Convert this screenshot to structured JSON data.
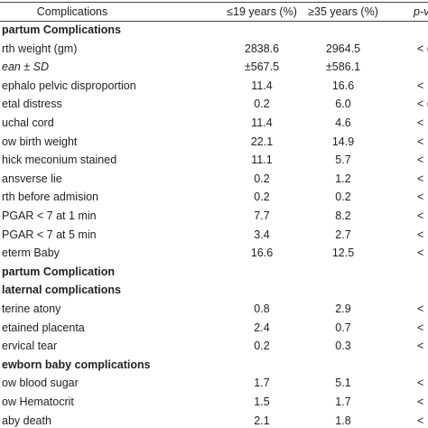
{
  "table": {
    "header": [
      "Complications",
      "≤19 years (%)",
      "≥35 years (%)",
      "p-v"
    ],
    "rows": [
      [
        "partum Complications"
      ],
      [
        "rth weight (gm)",
        "2838.6",
        "2964.5",
        "< ("
      ],
      [
        "ean ± SD",
        "±567.5",
        "±586.1"
      ],
      [
        "ephalo pelvic disproportion",
        "11.4",
        "16.6",
        "<"
      ],
      [
        "etal distress",
        "0.2",
        "6.0",
        "< ("
      ],
      [
        "uchal cord",
        "11.4",
        "4.6",
        "<"
      ],
      [
        "ow birth weight",
        "22.1",
        "14.9",
        "<"
      ],
      [
        "hick meconium stained",
        "11.1",
        "5.7",
        "<"
      ],
      [
        "ansverse lie",
        "0.2",
        "1.2",
        "<"
      ],
      [
        "rth before admision",
        "0.2",
        "0.2",
        "<"
      ],
      [
        "PGAR < 7 at 1 min",
        "7.7",
        "8.2",
        "<"
      ],
      [
        "PGAR < 7 at 5 min",
        "3.4",
        "2.7",
        "<"
      ],
      [
        "eterm Baby",
        "16.6",
        "12.5",
        "<"
      ],
      [
        "partum Complication"
      ],
      [
        "laternal complications"
      ],
      [
        "terine atony",
        "0.8",
        "2.9",
        "<"
      ],
      [
        "etained placenta",
        "2.4",
        "0.7",
        "<"
      ],
      [
        "ervical tear",
        "0.2",
        "0.3",
        "<"
      ],
      [
        "ewborn baby complications"
      ],
      [
        "ow blood sugar",
        "1.7",
        "5.1",
        "<"
      ],
      [
        "ow Hematocrit",
        "1.5",
        "1.7",
        "<"
      ],
      [
        "aby death",
        "2.1",
        "1.8",
        "<"
      ]
    ]
  }
}
